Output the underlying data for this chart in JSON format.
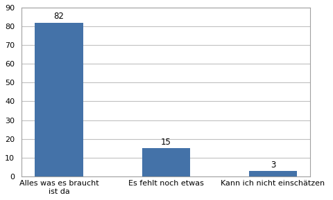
{
  "categories": [
    "Alles was es braucht\nist da",
    "Es fehlt noch etwas",
    "Kann ich nicht einschätzen"
  ],
  "values": [
    82,
    15,
    3
  ],
  "bar_color": "#4472a8",
  "ylim": [
    0,
    90
  ],
  "yticks": [
    0,
    10,
    20,
    30,
    40,
    50,
    60,
    70,
    80,
    90
  ],
  "bar_width": 0.45,
  "background_color": "#ffffff",
  "grid_color": "#c0c0c0",
  "border_color": "#a0a0a0",
  "label_fontsize": 8,
  "value_fontsize": 8.5,
  "tick_fontsize": 8
}
